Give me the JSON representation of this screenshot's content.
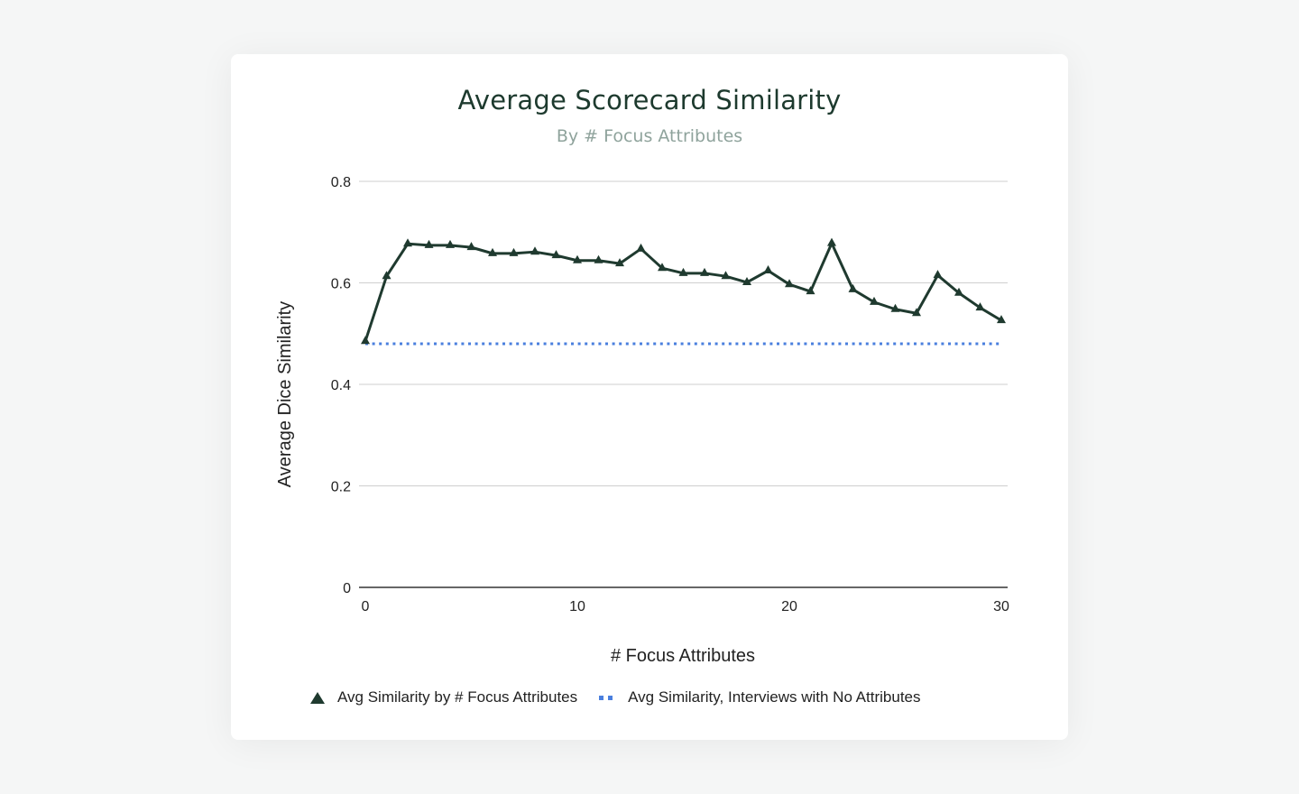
{
  "chart_data": {
    "type": "line",
    "title": "Average Scorecard Similarity",
    "subtitle": "By # Focus Attributes",
    "xlabel": "# Focus Attributes",
    "ylabel": "Average Dice Similarity",
    "xlim": [
      0,
      30
    ],
    "ylim": [
      0,
      0.8
    ],
    "x_ticks": [
      "0",
      "10",
      "20",
      "30"
    ],
    "x_tick_values": [
      0,
      10,
      20,
      30
    ],
    "y_ticks": [
      "0",
      "0.2",
      "0.4",
      "0.6",
      "0.8"
    ],
    "y_tick_values": [
      0,
      0.2,
      0.4,
      0.6,
      0.8
    ],
    "grid": true,
    "legend_position": "bottom",
    "series": [
      {
        "name": "Avg Similarity by # Focus Attributes",
        "style": "solid-line-triangle-markers",
        "color": "#1f3a2f",
        "x": [
          0,
          1,
          2,
          3,
          4,
          5,
          6,
          7,
          8,
          9,
          10,
          11,
          12,
          13,
          14,
          15,
          16,
          17,
          18,
          19,
          20,
          21,
          22,
          23,
          24,
          25,
          26,
          27,
          28,
          29,
          30
        ],
        "values": [
          0.485,
          0.613,
          0.677,
          0.674,
          0.674,
          0.67,
          0.658,
          0.658,
          0.661,
          0.654,
          0.644,
          0.644,
          0.638,
          0.667,
          0.629,
          0.619,
          0.619,
          0.613,
          0.601,
          0.624,
          0.597,
          0.583,
          0.678,
          0.587,
          0.562,
          0.548,
          0.54,
          0.615,
          0.58,
          0.551,
          0.526
        ]
      },
      {
        "name": "Avg Similarity, Interviews with No Attributes",
        "style": "dotted-line",
        "color": "#4a7fde",
        "x": [
          0,
          30
        ],
        "values": [
          0.48,
          0.48
        ]
      }
    ]
  }
}
